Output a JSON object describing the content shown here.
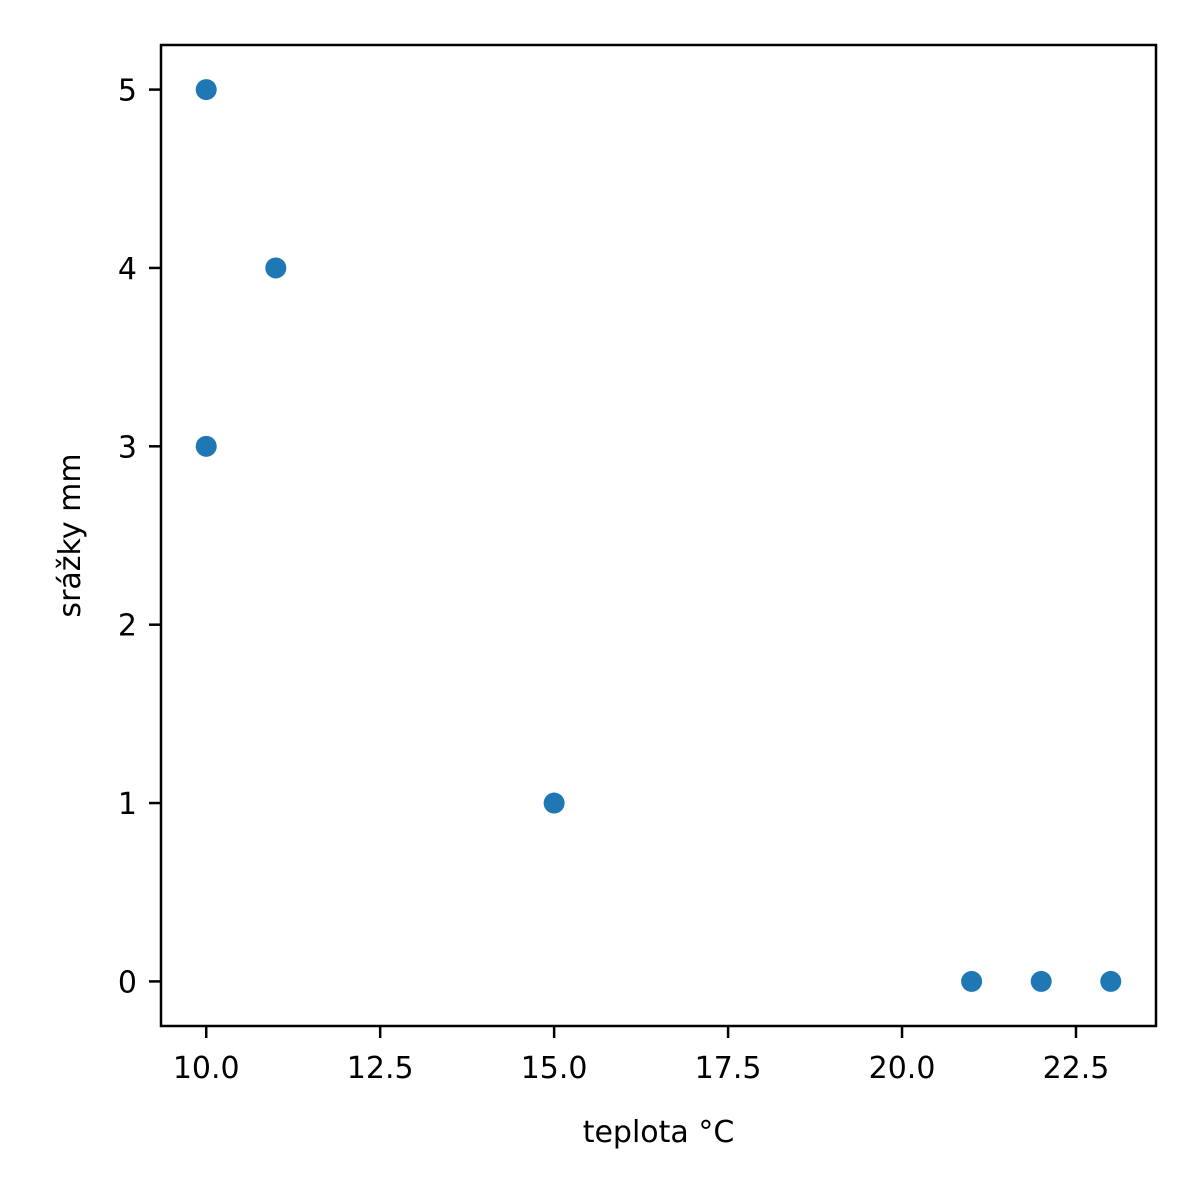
{
  "chart_data": {
    "type": "scatter",
    "xlabel": "teplota °C",
    "ylabel": "srážky mm",
    "xlim": [
      9.35,
      23.65
    ],
    "ylim": [
      -0.25,
      5.25
    ],
    "x_ticks": [
      10.0,
      12.5,
      15.0,
      17.5,
      20.0,
      22.5
    ],
    "x_tick_labels": [
      "10.0",
      "12.5",
      "15.0",
      "17.5",
      "20.0",
      "22.5"
    ],
    "y_ticks": [
      0,
      1,
      2,
      3,
      4,
      5
    ],
    "y_tick_labels": [
      "0",
      "1",
      "2",
      "3",
      "4",
      "5"
    ],
    "grid": false,
    "marker_color": "#1f77b4",
    "points": [
      {
        "x": 10,
        "y": 5
      },
      {
        "x": 11,
        "y": 4
      },
      {
        "x": 10,
        "y": 3
      },
      {
        "x": 15,
        "y": 1
      },
      {
        "x": 21,
        "y": 0
      },
      {
        "x": 22,
        "y": 0
      },
      {
        "x": 23,
        "y": 0
      }
    ]
  }
}
